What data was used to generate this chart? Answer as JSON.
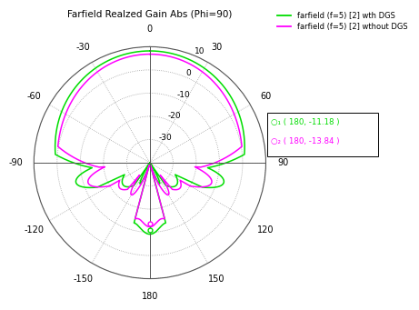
{
  "title": "Farfield Realzed Gain Abs (Phi=90)",
  "legend_labels": [
    "farfield (f=5) [2] wth DGS",
    "farfield (f=5) [2] wthout DGS"
  ],
  "legend_colors": [
    "#00dd00",
    "#ff00ff"
  ],
  "marker1_text": " ( 180, -11.18 )",
  "marker2_text": " ( 180, -13.84 )",
  "r_tick_vals": [
    10,
    0,
    -10,
    -20,
    -30
  ],
  "r_min": -40,
  "r_max": 10,
  "theta_grid_angles": [
    0,
    30,
    60,
    90,
    120,
    150,
    180,
    210,
    240,
    270,
    300,
    330
  ],
  "theta_labels": [
    "0",
    "30",
    "60",
    "90",
    "120",
    "150",
    "180",
    "-150",
    "-120",
    "-90",
    "-60",
    "-30"
  ]
}
